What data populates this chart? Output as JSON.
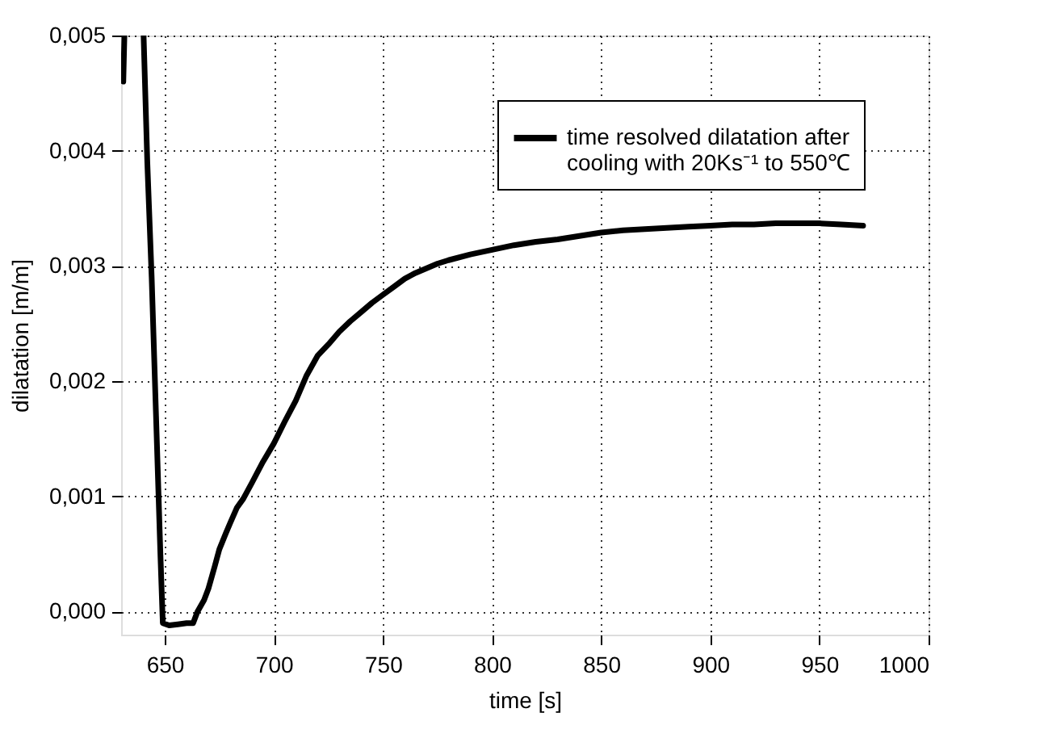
{
  "chart_data": {
    "type": "line",
    "xlabel": "time [s]",
    "ylabel": "dilatation [m/m]",
    "x": [
      631,
      631.5,
      636,
      640.3,
      642,
      644,
      646,
      648,
      649.1,
      652,
      656,
      660,
      663,
      665,
      668,
      670,
      673,
      675,
      678,
      680,
      683,
      686,
      690,
      695,
      700,
      705,
      710,
      715,
      720,
      725,
      730,
      735,
      740,
      745,
      750,
      755,
      760,
      765,
      770,
      775,
      780,
      790,
      800,
      810,
      820,
      830,
      840,
      850,
      860,
      870,
      880,
      890,
      900,
      910,
      920,
      930,
      940,
      950,
      960,
      970
    ],
    "series": [
      {
        "name": "time resolved dilatation after cooling with 20Ks⁻¹ to 550℃",
        "color": "#000000",
        "values": [
          0.0046,
          0.005,
          null,
          0.005,
          0.0039,
          0.0029,
          0.0017,
          0.0005,
          -0.0001,
          -0.00012,
          -0.00011,
          -0.0001,
          -0.0001,
          0.0,
          0.0001,
          0.0002,
          0.0004,
          0.00054,
          0.00068,
          0.00077,
          0.0009,
          0.00098,
          0.00112,
          0.0013,
          0.00146,
          0.00165,
          0.00183,
          0.00205,
          0.00222,
          0.00232,
          0.00243,
          0.00252,
          0.0026,
          0.00268,
          0.00275,
          0.00282,
          0.00289,
          0.00294,
          0.00298,
          0.00302,
          0.00305,
          0.0031,
          0.00314,
          0.00318,
          0.00321,
          0.00323,
          0.00326,
          0.00329,
          0.00331,
          0.00332,
          0.00333,
          0.00334,
          0.00335,
          0.00336,
          0.00336,
          0.00337,
          0.00337,
          0.00337,
          0.00336,
          0.00335
        ]
      }
    ],
    "xlim": [
      630,
      1000
    ],
    "xticks": [
      650,
      700,
      750,
      800,
      850,
      900,
      950,
      1000
    ],
    "ylim": [
      -0.0002,
      0.005
    ],
    "yticks": [
      {
        "value": 0,
        "label": "0,000"
      },
      {
        "value": 0.001,
        "label": "0,001"
      },
      {
        "value": 0.002,
        "label": "0,002"
      },
      {
        "value": 0.003,
        "label": "0,003"
      },
      {
        "value": 0.004,
        "label": "0,004"
      },
      {
        "value": 0.005,
        "label": "0,005"
      }
    ],
    "grid": true,
    "legend": "top right",
    "line_style": "solid",
    "marker": "none"
  }
}
